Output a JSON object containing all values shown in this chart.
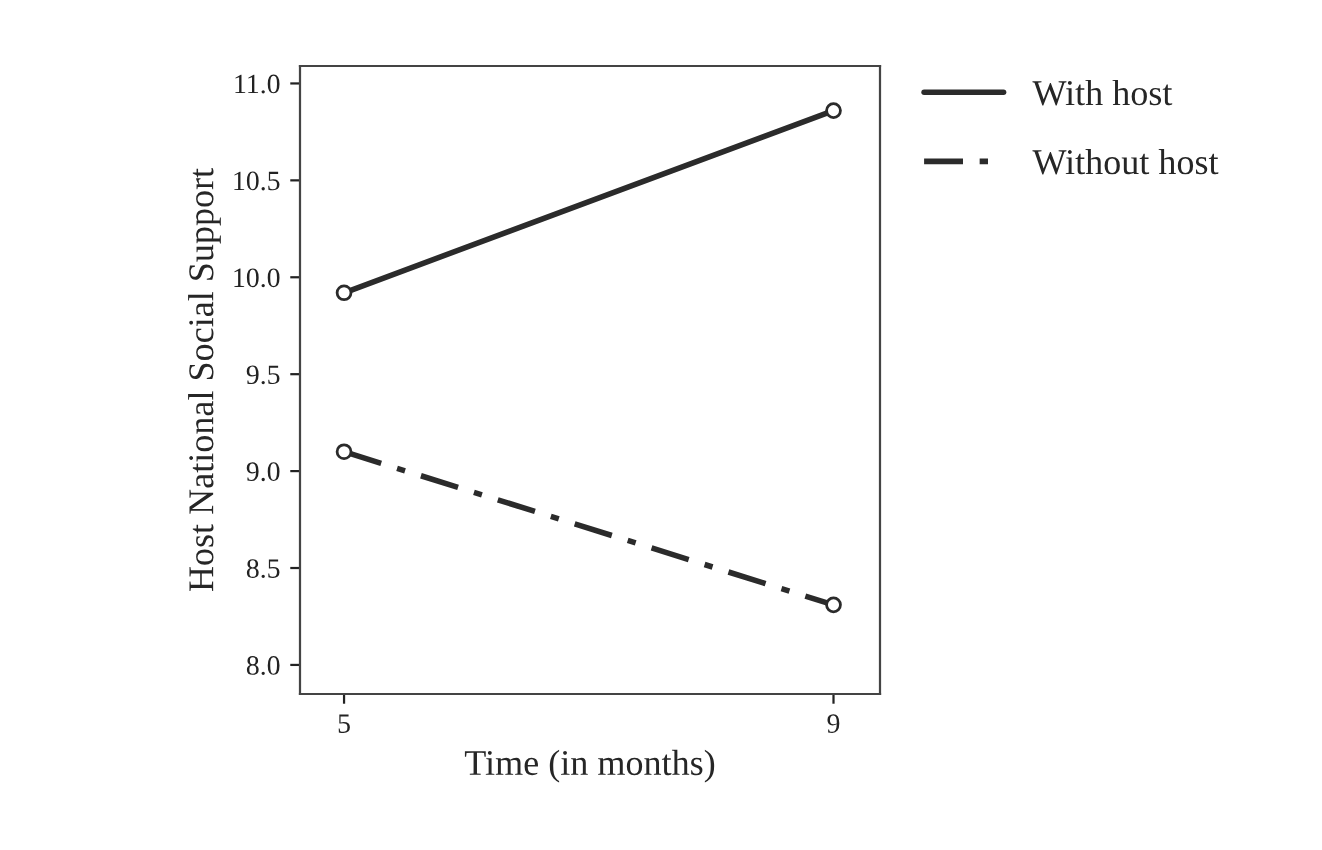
{
  "chart_data": {
    "type": "line",
    "xlabel": "Time (in months)",
    "ylabel": "Host National Social Support",
    "x": [
      5,
      9
    ],
    "series": [
      {
        "name": "With host",
        "color": "#2b2b2b",
        "values": [
          9.92,
          10.86
        ],
        "line_style": "solid"
      },
      {
        "name": "Without host",
        "color": "#2b2b2b",
        "values": [
          9.1,
          8.31
        ],
        "line_style": "dashdot"
      }
    ],
    "xlim": [
      4.64,
      9.38
    ],
    "xticks": [
      5,
      9
    ],
    "ylim": [
      7.85,
      11.09
    ],
    "yticks": [
      {
        "value": 8,
        "label": "8.0"
      },
      {
        "value": 8.5,
        "label": "8.5"
      },
      {
        "value": 9,
        "label": "9.0"
      },
      {
        "value": 9.5,
        "label": "9.5"
      },
      {
        "value": 10,
        "label": "10.0"
      },
      {
        "value": 10.5,
        "label": "10.5"
      },
      {
        "value": 11,
        "label": "11.0"
      }
    ],
    "marker": "circle",
    "grid": false,
    "legend": "top right"
  }
}
